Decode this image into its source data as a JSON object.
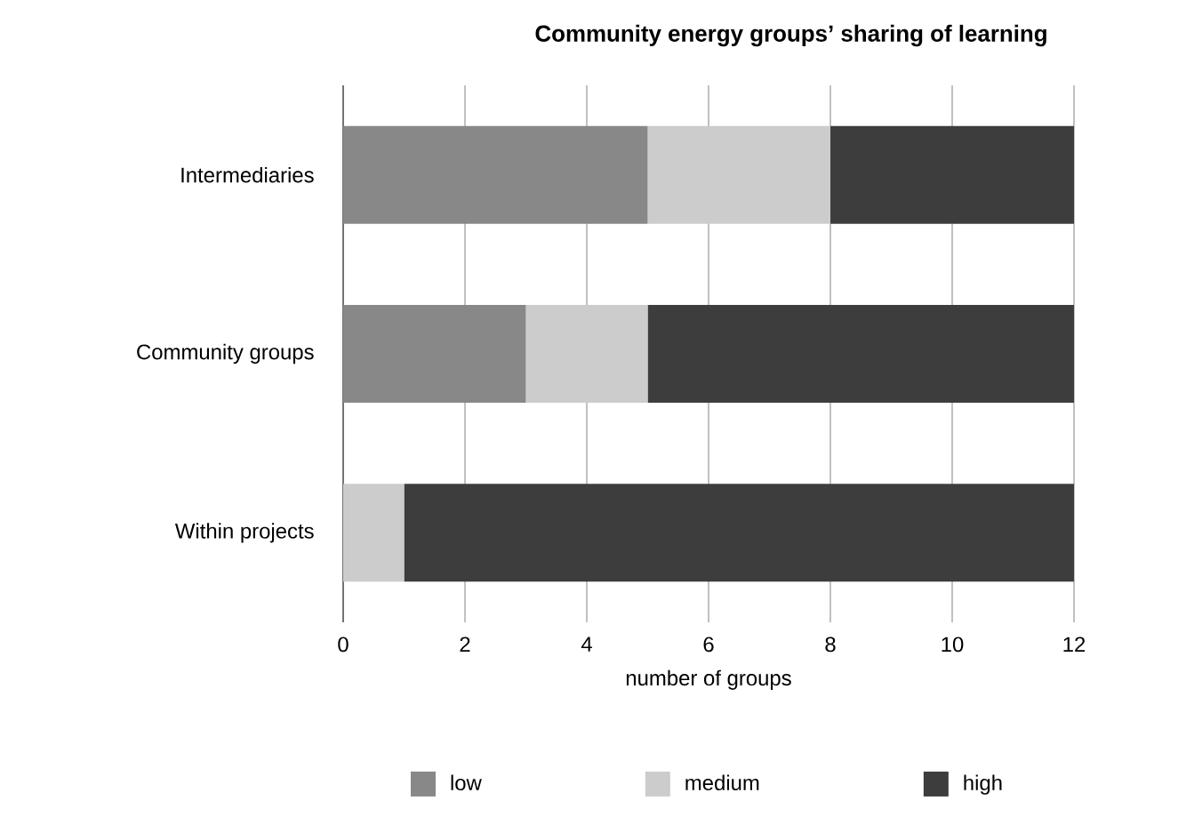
{
  "chart_data": {
    "type": "bar",
    "orientation": "horizontal",
    "stacked": true,
    "title": "Community energy groups’ sharing of learning",
    "xlabel": "number of groups",
    "categories": [
      "Intermediaries",
      "Community groups",
      "Within projects"
    ],
    "series": [
      {
        "name": "low",
        "color": "#888888",
        "values": [
          5,
          3,
          0
        ]
      },
      {
        "name": "medium",
        "color": "#cccccc",
        "values": [
          3,
          2,
          1
        ]
      },
      {
        "name": "high",
        "color": "#3c3d3c",
        "values": [
          4,
          7,
          11
        ]
      }
    ],
    "xlim": [
      0,
      12
    ],
    "xticks": [
      0,
      2,
      4,
      6,
      8,
      10,
      12
    ],
    "grid": "x",
    "legend": "bottom"
  }
}
